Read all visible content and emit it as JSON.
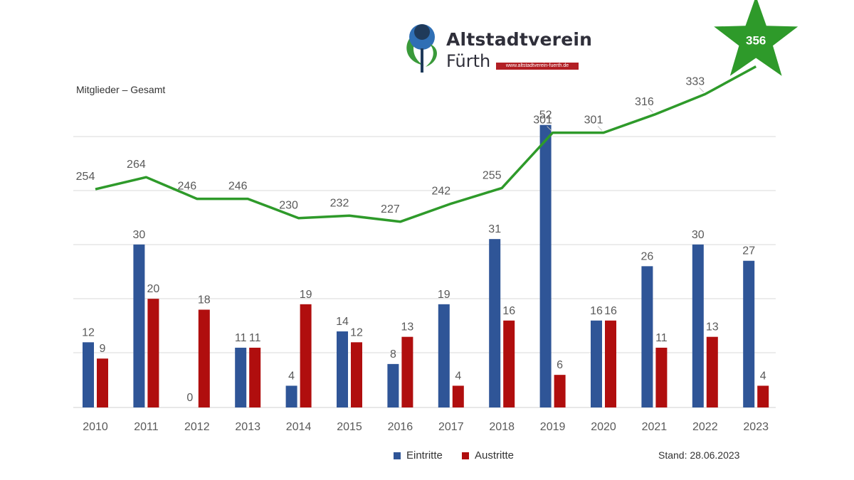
{
  "logo": {
    "title": "Altstadtverein",
    "city": "Fürth",
    "url": "www.altstadtverein-fuerth.de"
  },
  "members_label": "Mitglieder – Gesamt",
  "stand": "Stand: 28.06.2023",
  "colors": {
    "eintritte": "#2f5597",
    "austritte": "#b00e0e",
    "gesamt": "#2e9a2a",
    "grid": "#d9d9d9",
    "text": "#595959"
  },
  "chart_data": {
    "type": "bar",
    "categories": [
      "2010",
      "2011",
      "2012",
      "2013",
      "2014",
      "2015",
      "2016",
      "2017",
      "2018",
      "2019",
      "2020",
      "2021",
      "2022",
      "2023"
    ],
    "series": [
      {
        "name": "Eintritte",
        "values": [
          12,
          30,
          0,
          11,
          4,
          14,
          8,
          19,
          31,
          52,
          16,
          26,
          30,
          27
        ]
      },
      {
        "name": "Austritte",
        "values": [
          9,
          20,
          18,
          11,
          19,
          12,
          13,
          4,
          16,
          6,
          16,
          11,
          13,
          4
        ]
      }
    ],
    "line": {
      "name": "Mitglieder – Gesamt",
      "values": [
        254,
        264,
        246,
        246,
        230,
        232,
        227,
        242,
        255,
        301,
        301,
        316,
        333,
        356
      ],
      "highlight_last": "star"
    },
    "legend": [
      "Eintritte",
      "Austritte"
    ],
    "legend_position": "bottom",
    "bar_ylim": [
      0,
      55
    ],
    "grid": true
  }
}
